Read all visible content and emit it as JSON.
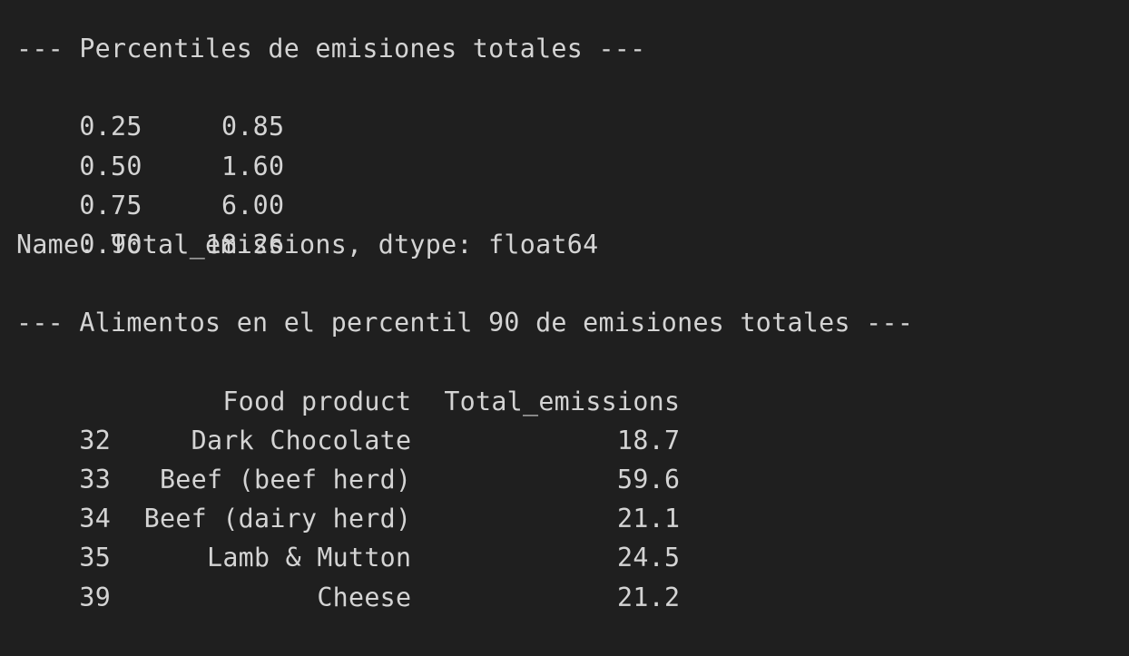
{
  "console": {
    "percentiles_header": "--- Percentiles de emisiones totales ---",
    "percentiles": [
      {
        "q": "0.25",
        "value": "0.85"
      },
      {
        "q": "0.50",
        "value": "1.60"
      },
      {
        "q": "0.75",
        "value": "6.00"
      },
      {
        "q": "0.90",
        "value": "18.26"
      }
    ],
    "series_info": "Name: Total_emissions, dtype: float64",
    "foods_header": "--- Alimentos en el percentil 90 de emisiones totales ---",
    "table": {
      "columns": [
        "Food product",
        "Total_emissions"
      ],
      "rows": [
        {
          "index": "32",
          "food": "Dark Chocolate",
          "total": "18.7"
        },
        {
          "index": "33",
          "food": "Beef (beef herd)",
          "total": "59.6"
        },
        {
          "index": "34",
          "food": "Beef (dairy herd)",
          "total": "21.1"
        },
        {
          "index": "35",
          "food": "Lamb & Mutton",
          "total": "24.5"
        },
        {
          "index": "39",
          "food": "Cheese",
          "total": "21.2"
        }
      ]
    }
  }
}
